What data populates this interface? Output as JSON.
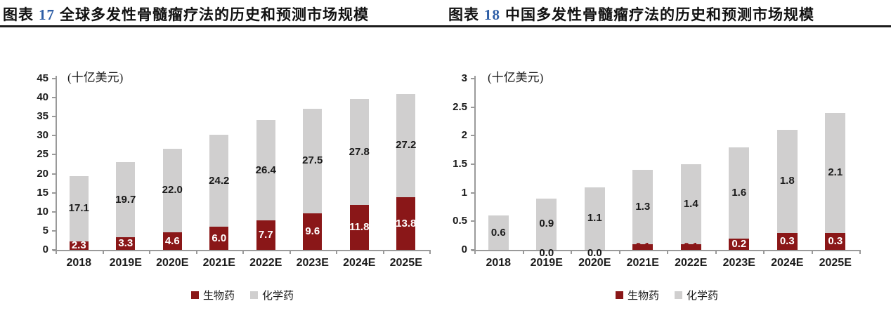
{
  "headings": [
    {
      "prefix": "图表",
      "number": "17",
      "text": "全球多发性骨髓瘤疗法的历史和预测市场规模"
    },
    {
      "prefix": "图表",
      "number": "18",
      "text": "中国多发性骨髓瘤疗法的历史和预测市场规模"
    }
  ],
  "colors": {
    "biologics": "#8a1718",
    "chemical": "#d0cfcf",
    "axis": "#9a9a9a",
    "text": "#1a1a1a",
    "white_label": "#ffffff",
    "heading_number": "#2e5ea6",
    "divider": "#1c1c1c"
  },
  "chart_data": [
    {
      "type": "bar",
      "stacked": true,
      "title": "图表 17 全球多发性骨髓瘤疗法的历史和预测市场规模",
      "unit_label": "(十亿美元)",
      "categories": [
        "2018",
        "2019E",
        "2020E",
        "2021E",
        "2022E",
        "2023E",
        "2024E",
        "2025E"
      ],
      "series": [
        {
          "name": "生物药",
          "color": "#8a1718",
          "values": [
            2.3,
            3.3,
            4.6,
            6.0,
            7.7,
            9.6,
            11.8,
            13.8
          ]
        },
        {
          "name": "化学药",
          "color": "#d0cfcf",
          "values": [
            17.1,
            19.7,
            22.0,
            24.2,
            26.4,
            27.5,
            27.8,
            27.2
          ]
        }
      ],
      "xlabel": "",
      "ylabel": "(十亿美元)",
      "ylim": [
        0,
        45
      ],
      "ytick_step": 5,
      "grid": false,
      "legend_position": "bottom"
    },
    {
      "type": "bar",
      "stacked": true,
      "title": "图表 18 中国多发性骨髓瘤疗法的历史和预测市场规模",
      "unit_label": "(十亿美元)",
      "categories": [
        "2018",
        "2019E",
        "2020E",
        "2021E",
        "2022E",
        "2023E",
        "2024E",
        "2025E"
      ],
      "series": [
        {
          "name": "生物药",
          "color": "#8a1718",
          "values": [
            null,
            0.0,
            0.0,
            0.1,
            0.1,
            0.2,
            0.3,
            0.3
          ]
        },
        {
          "name": "化学药",
          "color": "#d0cfcf",
          "values": [
            0.6,
            0.9,
            1.1,
            1.3,
            1.4,
            1.6,
            1.8,
            2.1
          ]
        }
      ],
      "xlabel": "",
      "ylabel": "(十亿美元)",
      "ylim": [
        0,
        3
      ],
      "ytick_step": 0.5,
      "grid": false,
      "legend_position": "bottom"
    }
  ]
}
